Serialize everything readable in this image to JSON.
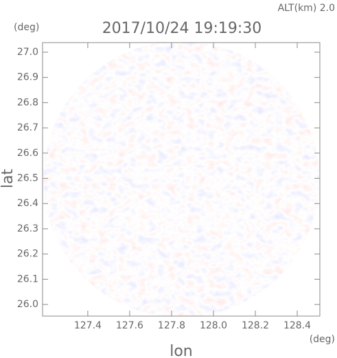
{
  "chart_data": {
    "type": "field",
    "title": "2017/10/24 19:19:30",
    "annotation": "ALT(km) 2.0",
    "y_unit": "(deg)",
    "x_unit": "(deg)",
    "x_label": "lon",
    "y_label": "lat",
    "xlim": [
      127.184,
      128.508
    ],
    "ylim": [
      25.954,
      27.038
    ],
    "xticks": [
      127.4,
      127.6,
      127.8,
      {
        "value": 128,
        "label": "128.0"
      },
      128.2,
      128.4
    ],
    "yticks": [
      {
        "value": 26,
        "label": "26.0"
      },
      26.1,
      26.2,
      26.3,
      26.4,
      26.5,
      26.6,
      26.7,
      26.8,
      26.9,
      {
        "value": 27,
        "label": "27.0"
      }
    ]
  }
}
